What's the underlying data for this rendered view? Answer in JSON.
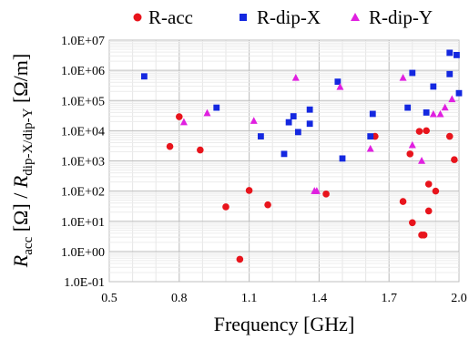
{
  "chart_data": {
    "type": "scatter",
    "title": "",
    "xlabel": "Frequency [GHz]",
    "ylabel": {
      "r1": "R",
      "s1": "acc",
      "mid": " [Ω] / ",
      "r2": "R",
      "s2": "dip-X/dip-Y",
      "end": " [Ω/m]"
    },
    "xlim": [
      0.5,
      2.0
    ],
    "ylim_log10": [
      -1,
      7
    ],
    "log_y": true,
    "grid": true,
    "legend_position": "top",
    "x_ticks": [
      "0.5",
      "0.8",
      "1.1",
      "1.4",
      "1.7",
      "2.0"
    ],
    "y_ticks": [
      "1.0E-01",
      "1.0E+00",
      "1.0E+01",
      "1.0E+02",
      "1.0E+03",
      "1.0E+04",
      "1.0E+05",
      "1.0E+06",
      "1.0E+07"
    ],
    "x_tick_values": [
      0.5,
      0.8,
      1.1,
      1.4,
      1.7,
      2.0
    ],
    "y_tick_exponents": [
      -1,
      0,
      1,
      2,
      3,
      4,
      5,
      6,
      7
    ],
    "series": [
      {
        "name": "R-acc",
        "marker": "circle",
        "color": "#e8141c",
        "points": [
          [
            0.76,
            3000
          ],
          [
            0.8,
            29000
          ],
          [
            0.89,
            2300
          ],
          [
            1.0,
            30
          ],
          [
            1.06,
            0.55
          ],
          [
            1.1,
            105
          ],
          [
            1.18,
            35
          ],
          [
            1.43,
            80
          ],
          [
            1.64,
            6500
          ],
          [
            1.76,
            45
          ],
          [
            1.79,
            1700
          ],
          [
            1.8,
            9
          ],
          [
            1.83,
            9500
          ],
          [
            1.84,
            3.5
          ],
          [
            1.85,
            3.5
          ],
          [
            1.86,
            10000
          ],
          [
            1.87,
            22
          ],
          [
            1.87,
            170
          ],
          [
            1.9,
            100
          ],
          [
            1.96,
            6500
          ],
          [
            1.98,
            1100
          ]
        ]
      },
      {
        "name": "R-dip-X",
        "marker": "square",
        "color": "#1428e0",
        "points": [
          [
            0.65,
            630000
          ],
          [
            0.96,
            58000
          ],
          [
            1.15,
            6500
          ],
          [
            1.25,
            1700
          ],
          [
            1.27,
            19000
          ],
          [
            1.29,
            30000
          ],
          [
            1.31,
            9000
          ],
          [
            1.36,
            17000
          ],
          [
            1.36,
            50000
          ],
          [
            1.48,
            420000
          ],
          [
            1.5,
            1200
          ],
          [
            1.62,
            6500
          ],
          [
            1.63,
            36000
          ],
          [
            1.78,
            58000
          ],
          [
            1.8,
            820000
          ],
          [
            1.86,
            40000
          ],
          [
            1.89,
            290000
          ],
          [
            1.96,
            3800000
          ],
          [
            1.96,
            750000
          ],
          [
            1.99,
            3200000
          ],
          [
            2.0,
            175000
          ]
        ]
      },
      {
        "name": "R-dip-Y",
        "marker": "triangle",
        "color": "#e020e0",
        "points": [
          [
            0.82,
            19000
          ],
          [
            0.92,
            38000
          ],
          [
            1.12,
            21000
          ],
          [
            1.3,
            560000
          ],
          [
            1.38,
            100
          ],
          [
            1.39,
            100
          ],
          [
            1.49,
            280000
          ],
          [
            1.62,
            2500
          ],
          [
            1.76,
            560000
          ],
          [
            1.8,
            3300
          ],
          [
            1.84,
            1000
          ],
          [
            1.89,
            35000
          ],
          [
            1.92,
            35000
          ],
          [
            1.94,
            58000
          ],
          [
            1.97,
            110000
          ]
        ]
      }
    ]
  }
}
